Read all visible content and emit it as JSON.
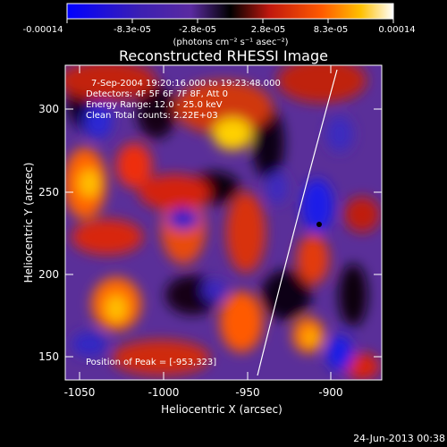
{
  "colorbar": {
    "ticks": [
      "-0.00014",
      "-8.3e-05",
      "-2.8e-05",
      "2.8e-05",
      "8.3e-05",
      "0.00014"
    ],
    "unit_label": "(photons cm⁻² s⁻¹ asec⁻²)"
  },
  "plot": {
    "title": "Reconstructed RHESSI Image",
    "xlabel": "Heliocentric X (arcsec)",
    "ylabel": "Heliocentric Y (arcsec)",
    "xticks": [
      "-1050",
      "-1000",
      "-950",
      "-900"
    ],
    "yticks": [
      "300",
      "250",
      "200",
      "150"
    ],
    "annotations": {
      "time": "7-Sep-2004 19:20:16.000 to 19:23:48.000",
      "detectors": "Detectors: 4F 5F 6F 7F 8F, Att 0",
      "energy": "Energy Range: 12.0 - 25.0 keV",
      "clean": "Clean     Total counts: 2.22E+03",
      "peak": "Position of Peak = [-953,323]"
    }
  },
  "footer": {
    "date": "24-Jun-2013 00:38"
  }
}
